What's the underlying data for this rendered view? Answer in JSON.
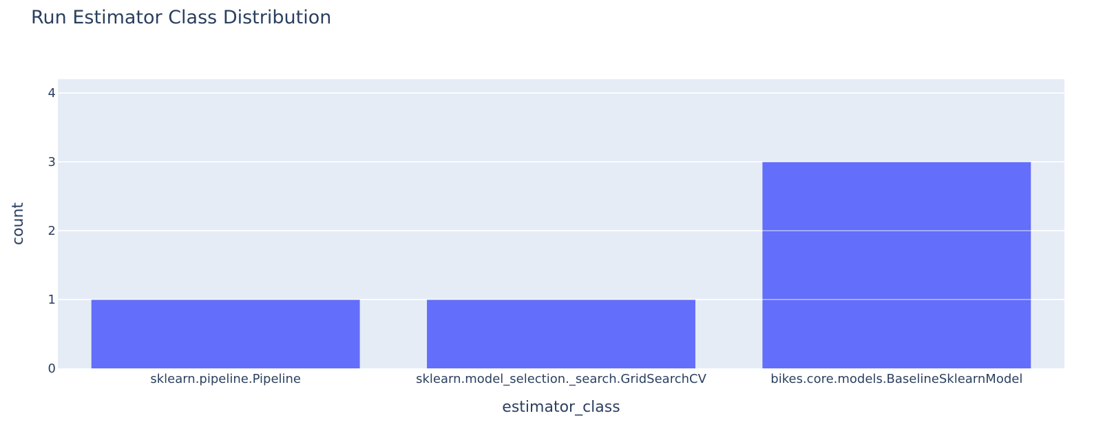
{
  "chart_data": {
    "type": "bar",
    "title": "Run Estimator Class Distribution",
    "xlabel": "estimator_class",
    "ylabel": "count",
    "categories": [
      "sklearn.pipeline.Pipeline",
      "sklearn.model_selection._search.GridSearchCV",
      "bikes.core.models.BaselineSklearnModel"
    ],
    "values": [
      1,
      1,
      3
    ],
    "ylim": [
      0,
      4.2
    ],
    "yticks": [
      0,
      1,
      2,
      3,
      4
    ],
    "grid": true,
    "legend": "none",
    "colors": {
      "bar": "#636efa",
      "plot_background": "#e5ecf6",
      "gridline": "#ffffff",
      "text": "#2a3f5f"
    }
  }
}
